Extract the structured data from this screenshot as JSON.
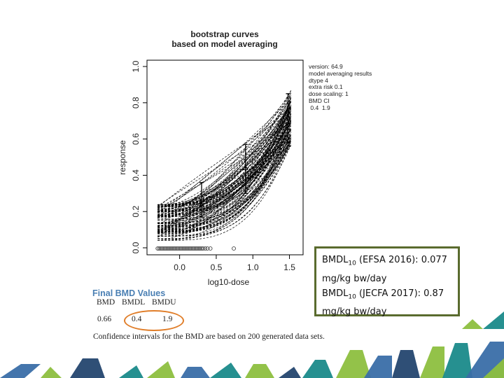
{
  "chart_data": {
    "type": "line",
    "title": [
      "bootstrap curves",
      "based on model averaging"
    ],
    "xlabel": "log10-dose",
    "ylabel": "response",
    "xlim": [
      -0.35,
      1.6
    ],
    "ylim": [
      0,
      1
    ],
    "x_ticks": [
      "0.0",
      "0.5",
      "1.0",
      "1.5"
    ],
    "y_ticks": [
      "0.0",
      "0.2",
      "0.4",
      "0.6",
      "0.8",
      "1.0"
    ],
    "n_curves": 200,
    "curve_x_range": [
      -0.3,
      1.52
    ],
    "curve_y_start_range": [
      0.04,
      0.24
    ],
    "curve_y_end_range": [
      0.56,
      0.87
    ],
    "observations": [
      {
        "x": 0.3,
        "y": 0.24,
        "lower": 0.17,
        "upper": 0.36
      },
      {
        "x": 0.9,
        "y": 0.44,
        "lower": 0.3,
        "upper": 0.57
      },
      {
        "x": 1.48,
        "y": 0.72,
        "lower": 0.58,
        "upper": 0.85
      }
    ],
    "rug_x": [
      -0.3,
      -0.28,
      -0.26,
      -0.24,
      -0.22,
      -0.2,
      -0.18,
      -0.16,
      -0.14,
      -0.12,
      -0.1,
      -0.08,
      -0.06,
      -0.04,
      -0.02,
      0.0,
      0.02,
      0.04,
      0.06,
      0.08,
      0.1,
      0.12,
      0.14,
      0.16,
      0.18,
      0.2,
      0.22,
      0.24,
      0.26,
      0.28,
      0.3,
      0.32,
      0.35,
      0.38,
      0.42,
      0.74
    ],
    "info_lines": [
      "version: 64.9",
      "model averaging results",
      "dtype  4",
      "extra risk  0.1",
      "dose scaling: 1",
      "BMD CI",
      " 0.4  1.9"
    ]
  },
  "bmd_values": {
    "heading": "Final BMD Values",
    "headers": [
      "BMD",
      "BMDL",
      "BMDU"
    ],
    "values": [
      "0.66",
      "0.4",
      "1.9"
    ],
    "note": "Confidence intervals for the BMD are based on 200 generated data sets."
  },
  "callout": {
    "line1_prefix": "BMDL",
    "line1_sub": "10",
    "line1_rest": " (EFSA 2016): 0.077",
    "line2": "mg/kg bw/day",
    "line3_prefix": "BMDL",
    "line3_sub": "10",
    "line3_rest": " (JECFA 2017): 0.87",
    "line4": "mg/kg bw/day"
  },
  "colors": {
    "curve": "#000000",
    "bmd_heading": "#4a7fb3",
    "highlight_oval": "#e07e2a",
    "callout_border": "#5a6b2e",
    "deco_green": "#8dbf3f",
    "deco_teal": "#1a8a8a",
    "deco_blue": "#3a6ea8",
    "deco_navy": "#24466f"
  }
}
